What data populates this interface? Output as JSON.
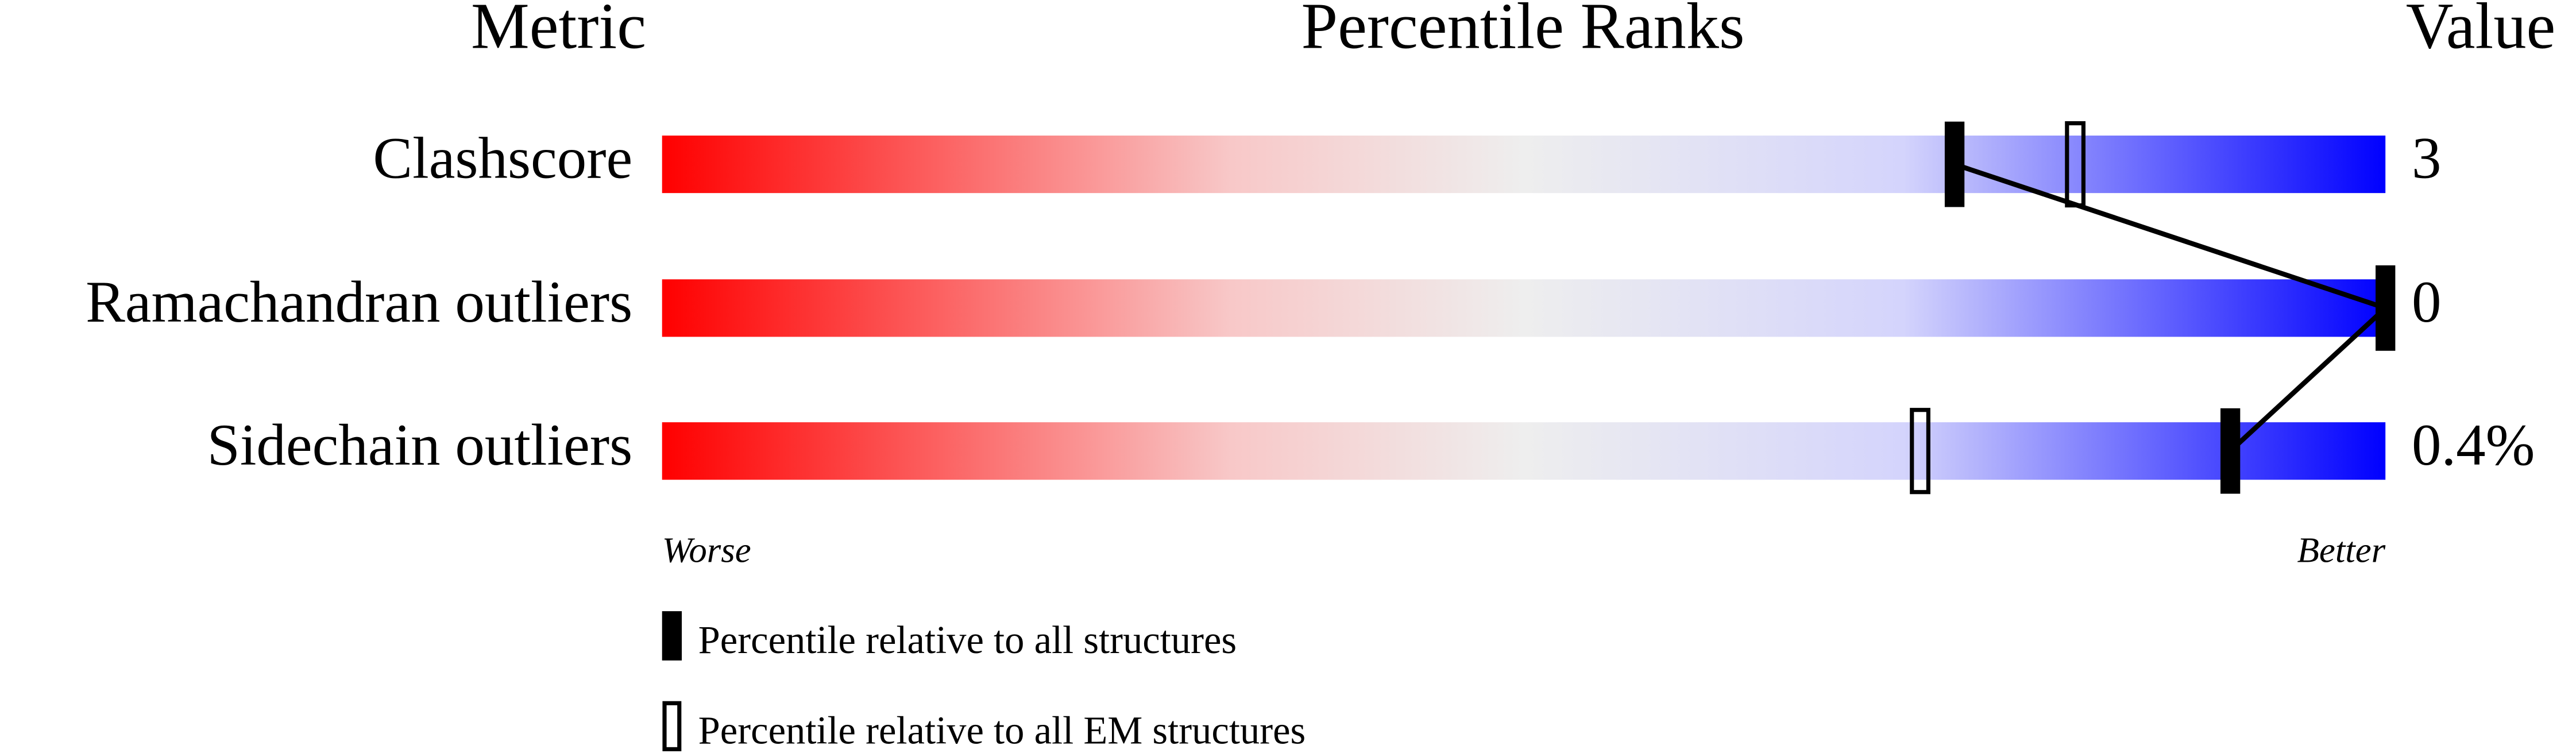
{
  "chart_data": {
    "type": "percentile",
    "headers": {
      "metric": "Metric",
      "ranks": "Percentile Ranks",
      "value": "Value"
    },
    "categories": [
      "Clashscore",
      "Ramachandran outliers",
      "Sidechain outliers"
    ],
    "metric_values": [
      "3",
      "0",
      "0.4%"
    ],
    "series": [
      {
        "name": "Percentile relative to all structures",
        "color": "#000000",
        "style": "filled",
        "values": [
          75,
          100,
          91
        ]
      },
      {
        "name": "Percentile relative to all EM structures",
        "color": "#000000",
        "style": "hollow",
        "values": [
          82,
          null,
          73
        ]
      }
    ],
    "xlim": [
      0,
      100
    ],
    "worse_label": "Worse",
    "better_label": "Better"
  }
}
